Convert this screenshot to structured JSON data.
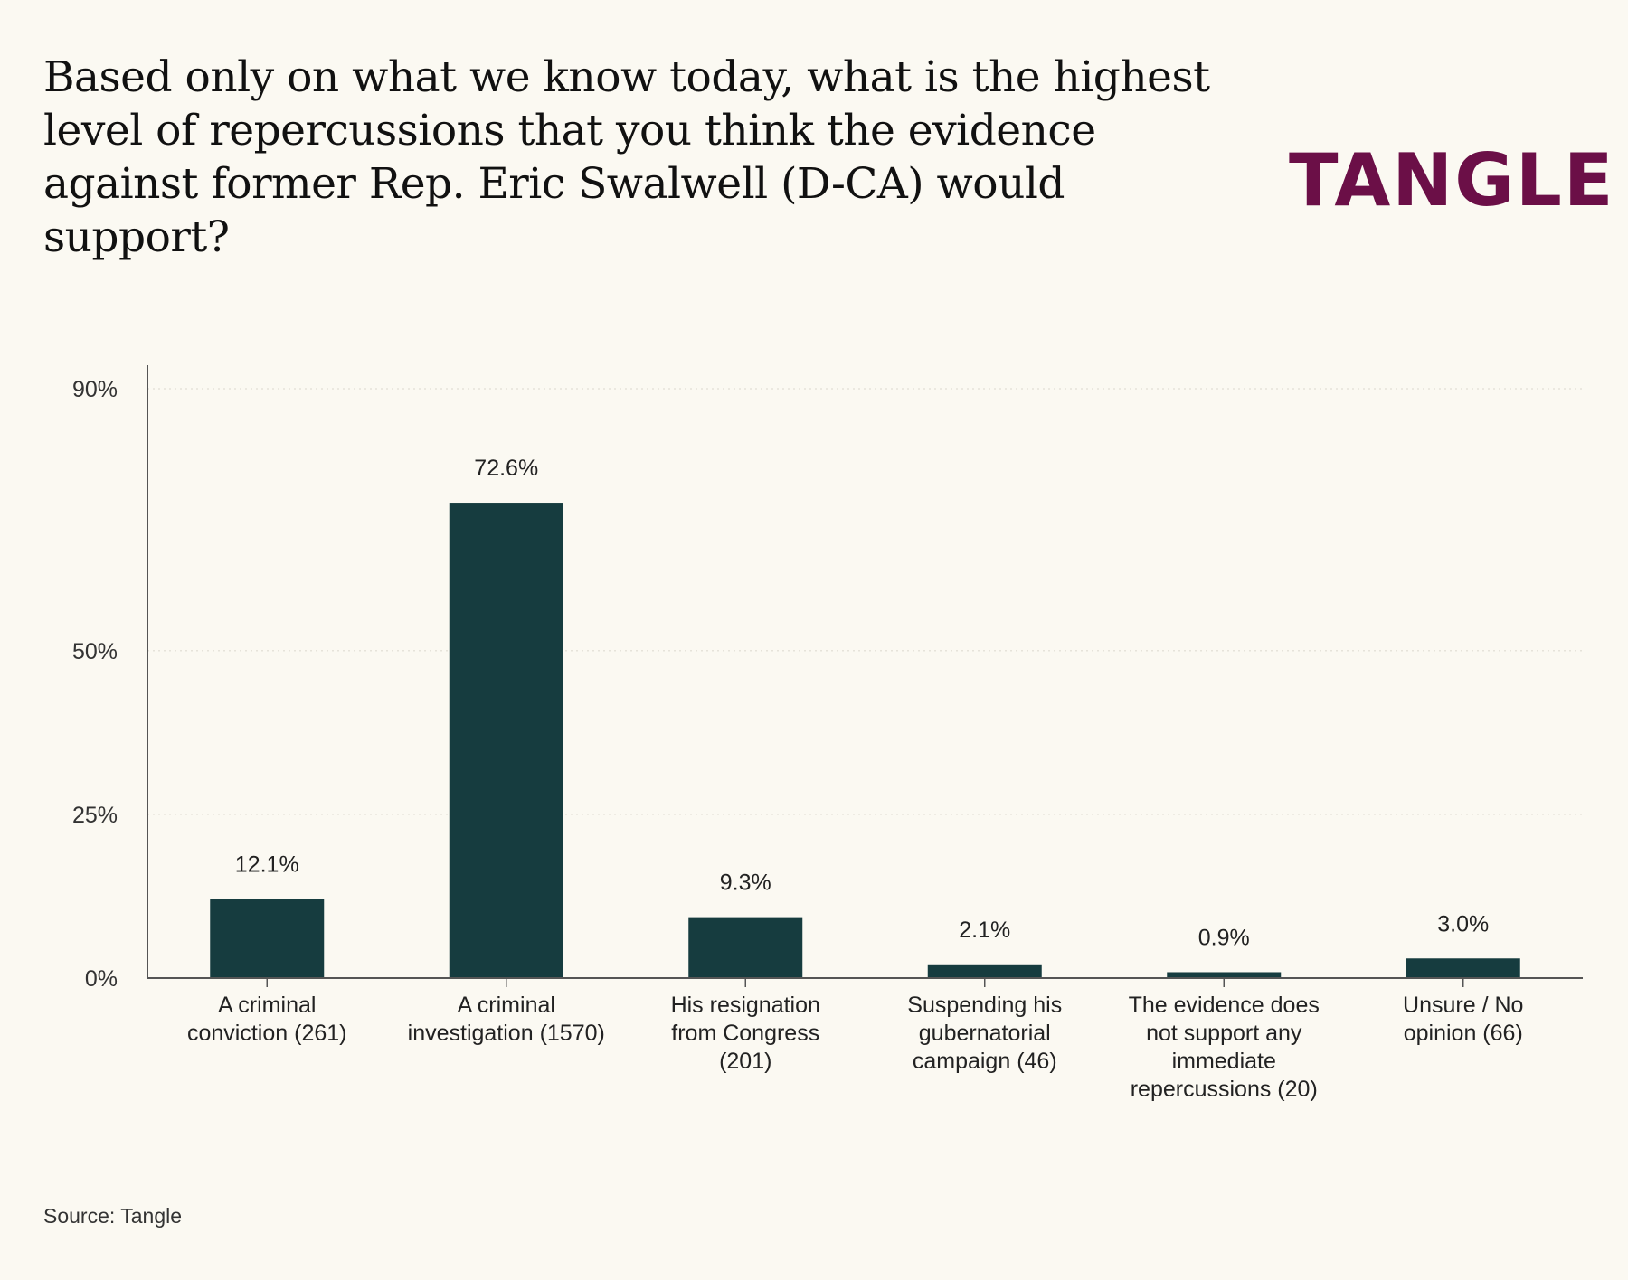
{
  "title": "Based only on what we know today, what is the highest level of repercussions that you think the evidence against former Rep. Eric Swalwell (D-CA) would support?",
  "logo_text": "TANGLE",
  "source": "Source: Tangle",
  "colors": {
    "background": "#fbf9f2",
    "bar": "#163c3f",
    "brand": "#6b0f47",
    "axis": "#555555"
  },
  "chart_data": {
    "type": "bar",
    "title": "",
    "xlabel": "",
    "ylabel": "",
    "categories": [
      [
        "A criminal",
        "conviction (261)"
      ],
      [
        "A criminal",
        "investigation (1570)"
      ],
      [
        "His resignation",
        "from Congress",
        "(201)"
      ],
      [
        "Suspending his",
        "gubernatorial",
        "campaign (46)"
      ],
      [
        "The evidence does",
        "not support any",
        "immediate",
        "repercussions (20)"
      ],
      [
        "Unsure / No",
        "opinion (66)"
      ]
    ],
    "values": [
      12.1,
      72.6,
      9.3,
      2.1,
      0.9,
      3.0
    ],
    "value_labels": [
      "12.1%",
      "72.6%",
      "9.3%",
      "2.1%",
      "0.9%",
      "3.0%"
    ],
    "yticks": [
      0,
      25,
      50,
      90
    ],
    "ytick_labels": [
      "0%",
      "25%",
      "50%",
      "90%"
    ],
    "ylim": [
      0,
      90
    ],
    "grid": true
  }
}
